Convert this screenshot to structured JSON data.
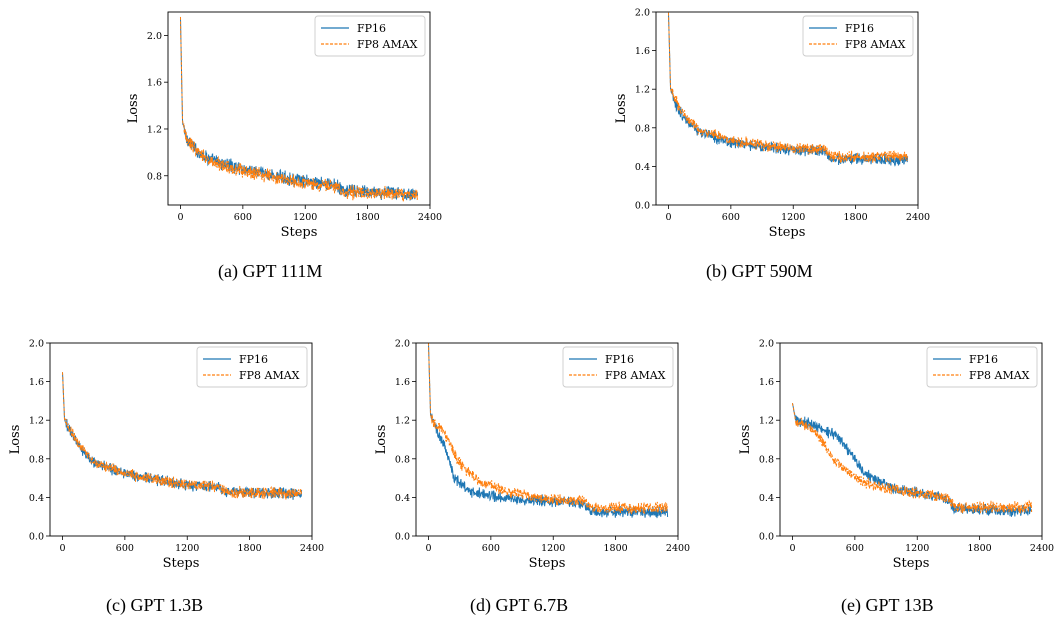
{
  "colors": {
    "fp16": "#1f77b4",
    "fp8": "#ff7f0e"
  },
  "legend": {
    "series1": "FP16",
    "series2": "FP8 AMAX",
    "placement": "top-right"
  },
  "panels": [
    {
      "id": "a",
      "caption": "(a) GPT 111M",
      "xlabel": "Steps",
      "ylabel": "Loss",
      "xticks": [
        "0",
        "600",
        "1200",
        "1800",
        "2400"
      ],
      "yticks": [
        "0.8",
        "1.2",
        "1.6",
        "2.0"
      ]
    },
    {
      "id": "b",
      "caption": "(b) GPT 590M",
      "xlabel": "Steps",
      "ylabel": "Loss",
      "xticks": [
        "0",
        "600",
        "1200",
        "1800",
        "2400"
      ],
      "yticks": [
        "0.0",
        "0.4",
        "0.8",
        "1.2",
        "1.6",
        "2.0"
      ]
    },
    {
      "id": "c",
      "caption": "(c) GPT 1.3B",
      "xlabel": "Steps",
      "ylabel": "Loss",
      "xticks": [
        "0",
        "600",
        "1200",
        "1800",
        "2400"
      ],
      "yticks": [
        "0.0",
        "0.4",
        "0.8",
        "1.2",
        "1.6",
        "2.0"
      ]
    },
    {
      "id": "d",
      "caption": "(d) GPT 6.7B",
      "xlabel": "Steps",
      "ylabel": "Loss",
      "xticks": [
        "0",
        "600",
        "1200",
        "1800",
        "2400"
      ],
      "yticks": [
        "0.0",
        "0.4",
        "0.8",
        "1.2",
        "1.6",
        "2.0"
      ]
    },
    {
      "id": "e",
      "caption": "(e) GPT 13B",
      "xlabel": "Steps",
      "ylabel": "Loss",
      "xticks": [
        "0",
        "600",
        "1200",
        "1800",
        "2400"
      ],
      "yticks": [
        "0.0",
        "0.4",
        "0.8",
        "1.2",
        "1.6",
        "2.0"
      ]
    }
  ],
  "chart_data": [
    {
      "type": "line",
      "xlabel": "Steps",
      "ylabel": "Loss",
      "xlim": [
        -120,
        2400
      ],
      "ylim": [
        0.55,
        2.2
      ],
      "series": [
        {
          "name": "FP16",
          "points": [
            [
              0,
              2.15
            ],
            [
              20,
              1.25
            ],
            [
              60,
              1.12
            ],
            [
              150,
              1.02
            ],
            [
              300,
              0.93
            ],
            [
              600,
              0.86
            ],
            [
              900,
              0.8
            ],
            [
              1200,
              0.75
            ],
            [
              1500,
              0.72
            ],
            [
              1560,
              0.67
            ],
            [
              1800,
              0.66
            ],
            [
              2280,
              0.64
            ]
          ]
        },
        {
          "name": "FP8 AMAX",
          "points": [
            [
              0,
              2.15
            ],
            [
              20,
              1.25
            ],
            [
              60,
              1.12
            ],
            [
              150,
              1.02
            ],
            [
              300,
              0.92
            ],
            [
              600,
              0.84
            ],
            [
              900,
              0.79
            ],
            [
              1200,
              0.74
            ],
            [
              1500,
              0.71
            ],
            [
              1560,
              0.66
            ],
            [
              1800,
              0.65
            ],
            [
              2280,
              0.64
            ]
          ]
        }
      ]
    },
    {
      "type": "line",
      "xlabel": "Steps",
      "ylabel": "Loss",
      "xlim": [
        -120,
        2400
      ],
      "ylim": [
        0,
        2.0
      ],
      "series": [
        {
          "name": "FP16",
          "points": [
            [
              0,
              2.0
            ],
            [
              20,
              1.2
            ],
            [
              60,
              1.05
            ],
            [
              150,
              0.9
            ],
            [
              300,
              0.75
            ],
            [
              600,
              0.65
            ],
            [
              900,
              0.6
            ],
            [
              1200,
              0.57
            ],
            [
              1500,
              0.56
            ],
            [
              1560,
              0.47
            ],
            [
              1800,
              0.48
            ],
            [
              2300,
              0.47
            ]
          ]
        },
        {
          "name": "FP8 AMAX",
          "points": [
            [
              0,
              2.0
            ],
            [
              20,
              1.2
            ],
            [
              60,
              1.1
            ],
            [
              150,
              0.93
            ],
            [
              300,
              0.78
            ],
            [
              600,
              0.67
            ],
            [
              900,
              0.62
            ],
            [
              1200,
              0.59
            ],
            [
              1500,
              0.58
            ],
            [
              1560,
              0.5
            ],
            [
              1800,
              0.5
            ],
            [
              2300,
              0.5
            ]
          ]
        }
      ]
    },
    {
      "type": "line",
      "xlabel": "Steps",
      "ylabel": "Loss",
      "xlim": [
        -120,
        2400
      ],
      "ylim": [
        0,
        2.0
      ],
      "series": [
        {
          "name": "FP16",
          "points": [
            [
              0,
              1.7
            ],
            [
              20,
              1.2
            ],
            [
              60,
              1.12
            ],
            [
              150,
              0.95
            ],
            [
              300,
              0.76
            ],
            [
              600,
              0.65
            ],
            [
              900,
              0.58
            ],
            [
              1200,
              0.53
            ],
            [
              1500,
              0.51
            ],
            [
              1560,
              0.46
            ],
            [
              1800,
              0.45
            ],
            [
              2300,
              0.44
            ]
          ]
        },
        {
          "name": "FP8 AMAX",
          "points": [
            [
              0,
              1.7
            ],
            [
              20,
              1.2
            ],
            [
              60,
              1.12
            ],
            [
              150,
              0.96
            ],
            [
              300,
              0.77
            ],
            [
              600,
              0.65
            ],
            [
              900,
              0.58
            ],
            [
              1200,
              0.53
            ],
            [
              1500,
              0.51
            ],
            [
              1560,
              0.46
            ],
            [
              1800,
              0.45
            ],
            [
              2300,
              0.44
            ]
          ]
        }
      ]
    },
    {
      "type": "line",
      "xlabel": "Steps",
      "ylabel": "Loss",
      "xlim": [
        -120,
        2400
      ],
      "ylim": [
        0,
        2.0
      ],
      "series": [
        {
          "name": "FP16",
          "points": [
            [
              0,
              2.0
            ],
            [
              20,
              1.25
            ],
            [
              60,
              1.15
            ],
            [
              150,
              0.95
            ],
            [
              250,
              0.6
            ],
            [
              400,
              0.45
            ],
            [
              600,
              0.42
            ],
            [
              900,
              0.38
            ],
            [
              1200,
              0.36
            ],
            [
              1500,
              0.34
            ],
            [
              1560,
              0.25
            ],
            [
              1800,
              0.25
            ],
            [
              2300,
              0.25
            ]
          ]
        },
        {
          "name": "FP8 AMAX",
          "points": [
            [
              0,
              2.0
            ],
            [
              20,
              1.25
            ],
            [
              60,
              1.15
            ],
            [
              150,
              1.08
            ],
            [
              300,
              0.75
            ],
            [
              500,
              0.55
            ],
            [
              800,
              0.45
            ],
            [
              1000,
              0.41
            ],
            [
              1200,
              0.38
            ],
            [
              1500,
              0.36
            ],
            [
              1560,
              0.3
            ],
            [
              1800,
              0.29
            ],
            [
              2300,
              0.29
            ]
          ]
        }
      ]
    },
    {
      "type": "line",
      "xlabel": "Steps",
      "ylabel": "Loss",
      "xlim": [
        -120,
        2400
      ],
      "ylim": [
        0,
        2.0
      ],
      "series": [
        {
          "name": "FP16",
          "points": [
            [
              0,
              1.38
            ],
            [
              30,
              1.2
            ],
            [
              200,
              1.15
            ],
            [
              400,
              1.05
            ],
            [
              500,
              0.95
            ],
            [
              600,
              0.8
            ],
            [
              700,
              0.65
            ],
            [
              900,
              0.52
            ],
            [
              1200,
              0.45
            ],
            [
              1500,
              0.38
            ],
            [
              1560,
              0.28
            ],
            [
              1800,
              0.27
            ],
            [
              2300,
              0.26
            ]
          ]
        },
        {
          "name": "FP8 AMAX",
          "points": [
            [
              0,
              1.38
            ],
            [
              30,
              1.2
            ],
            [
              200,
              1.1
            ],
            [
              300,
              0.95
            ],
            [
              400,
              0.8
            ],
            [
              500,
              0.68
            ],
            [
              700,
              0.55
            ],
            [
              900,
              0.5
            ],
            [
              1200,
              0.44
            ],
            [
              1500,
              0.39
            ],
            [
              1560,
              0.3
            ],
            [
              1800,
              0.3
            ],
            [
              2300,
              0.3
            ]
          ]
        }
      ]
    }
  ]
}
